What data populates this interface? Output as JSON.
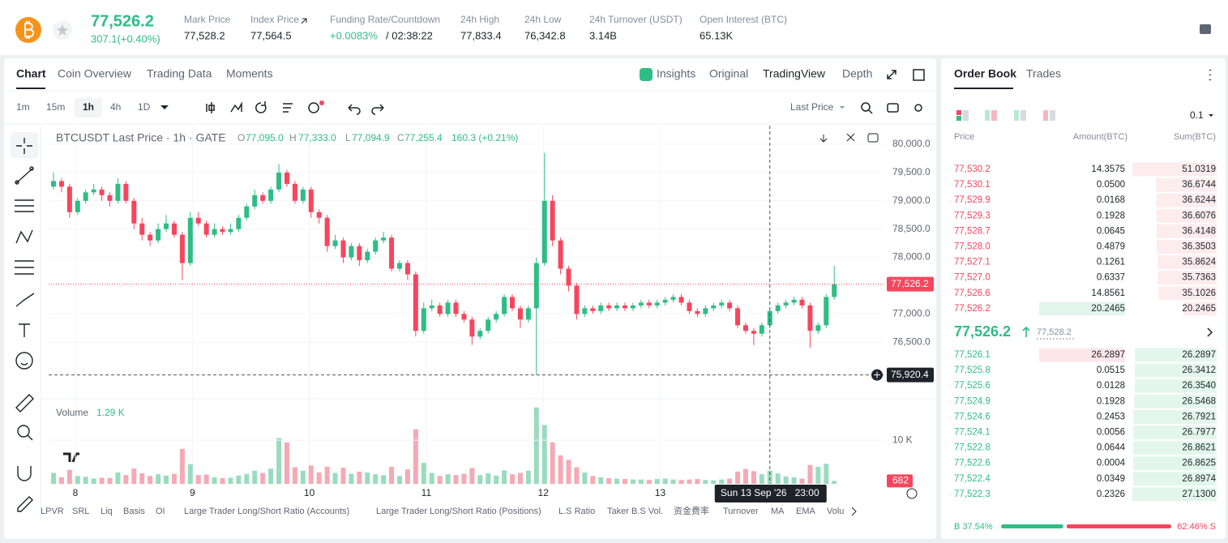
{
  "header": {
    "price": "77,526.2",
    "change": "307.1(+0.40%)",
    "stats": [
      {
        "label": "Mark Price",
        "value": "77,528.2"
      },
      {
        "label": "Index Price",
        "value": "77,564.5"
      },
      {
        "label": "Funding Rate/Countdown",
        "value": "+0.0083%",
        "extra": "/ 02:38:22"
      },
      {
        "label": "24h High",
        "value": "77,833.4"
      },
      {
        "label": "24h Low",
        "value": "76,342.8"
      },
      {
        "label": "24h Turnover (USDT)",
        "value": "3.14B"
      },
      {
        "label": "Open Interest (BTC)",
        "value": "65.13K"
      }
    ]
  },
  "chart_tabs": [
    "Chart",
    "Coin Overview",
    "Trading Data",
    "Moments"
  ],
  "view_tabs": [
    "Insights",
    "Original",
    "TradingView",
    "Depth"
  ],
  "intervals": [
    "1m",
    "15m",
    "1h",
    "4h",
    "1D"
  ],
  "price_type": "Last Price",
  "chart_data": {
    "type": "candlestick",
    "title": "BTCUSDT Last Price · 1h · GATE",
    "legend": [
      {
        "key": "O",
        "value": "77,095.0"
      },
      {
        "key": "H",
        "value": "77,333.0"
      },
      {
        "key": "L",
        "value": "77,094.9"
      },
      {
        "key": "C",
        "value": "77,255.4"
      }
    ],
    "legend_change": "160.3 (+0.21%)",
    "colors": {
      "up": "#2ebd85",
      "down": "#f6465d",
      "up_volume": "#9adbbf",
      "down_volume": "#f5a9b3"
    },
    "candles": [
      [
        79250,
        79500,
        79200,
        79350
      ],
      [
        79350,
        79400,
        79150,
        79250
      ],
      [
        79250,
        79300,
        78700,
        78800
      ],
      [
        78800,
        79050,
        78750,
        79000
      ],
      [
        79000,
        79200,
        78950,
        79150
      ],
      [
        79150,
        79300,
        79100,
        79200
      ],
      [
        79200,
        79250,
        79000,
        79100
      ],
      [
        79100,
        79150,
        78900,
        79000
      ],
      [
        79000,
        79400,
        78950,
        79300
      ],
      [
        79300,
        79350,
        78950,
        79000
      ],
      [
        79000,
        79050,
        78500,
        78600
      ],
      [
        78600,
        78700,
        78300,
        78400
      ],
      [
        78400,
        78450,
        78200,
        78300
      ],
      [
        78300,
        78600,
        78250,
        78500
      ],
      [
        78500,
        78750,
        78450,
        78600
      ],
      [
        78600,
        78650,
        78350,
        78400
      ],
      [
        78400,
        78450,
        77600,
        77900
      ],
      [
        77900,
        78800,
        77850,
        78700
      ],
      [
        78700,
        78800,
        78550,
        78600
      ],
      [
        78600,
        78650,
        78350,
        78400
      ],
      [
        78400,
        78600,
        78350,
        78500
      ],
      [
        78500,
        78550,
        78400,
        78450
      ],
      [
        78450,
        78600,
        78400,
        78500
      ],
      [
        78500,
        78750,
        78450,
        78700
      ],
      [
        78700,
        78950,
        78650,
        78900
      ],
      [
        78900,
        79200,
        78850,
        79100
      ],
      [
        79100,
        79150,
        78950,
        79000
      ],
      [
        79000,
        79250,
        78950,
        79200
      ],
      [
        79200,
        79650,
        79150,
        79500
      ],
      [
        79500,
        79550,
        79250,
        79300
      ],
      [
        79300,
        79350,
        78950,
        79000
      ],
      [
        79000,
        79250,
        78950,
        79200
      ],
      [
        79200,
        79250,
        78700,
        78800
      ],
      [
        78800,
        78850,
        78600,
        78700
      ],
      [
        78700,
        78750,
        78100,
        78200
      ],
      [
        78200,
        78400,
        78150,
        78300
      ],
      [
        78300,
        78350,
        77900,
        78000
      ],
      [
        78000,
        78250,
        77950,
        78200
      ],
      [
        78200,
        78250,
        77850,
        77950
      ],
      [
        77950,
        78150,
        77900,
        78100
      ],
      [
        78100,
        78350,
        78050,
        78300
      ],
      [
        78300,
        78450,
        78250,
        78350
      ],
      [
        78350,
        78400,
        77750,
        77800
      ],
      [
        77800,
        77950,
        77750,
        77900
      ],
      [
        77900,
        77950,
        77600,
        77700
      ],
      [
        77700,
        77750,
        76600,
        76700
      ],
      [
        76700,
        77200,
        76650,
        77100
      ],
      [
        77100,
        77250,
        77050,
        77150
      ],
      [
        77150,
        77200,
        76950,
        77000
      ],
      [
        77000,
        77250,
        76950,
        77200
      ],
      [
        77200,
        77250,
        76950,
        77000
      ],
      [
        77000,
        77050,
        76850,
        76900
      ],
      [
        76900,
        76950,
        76450,
        76600
      ],
      [
        76600,
        76750,
        76550,
        76700
      ],
      [
        76700,
        76950,
        76650,
        76900
      ],
      [
        76900,
        77050,
        76850,
        77000
      ],
      [
        77000,
        77350,
        76950,
        77300
      ],
      [
        77300,
        77350,
        77050,
        77100
      ],
      [
        77100,
        77150,
        76750,
        76900
      ],
      [
        76900,
        77150,
        76850,
        77100
      ],
      [
        77100,
        78000,
        75920.4,
        77900
      ],
      [
        77900,
        79850,
        77850,
        79000
      ],
      [
        79000,
        79100,
        78200,
        78300
      ],
      [
        78300,
        78350,
        77700,
        77800
      ],
      [
        77800,
        77850,
        77400,
        77500
      ],
      [
        77500,
        77550,
        76900,
        77000
      ],
      [
        77000,
        77150,
        76950,
        77100
      ],
      [
        77100,
        77150,
        77000,
        77050
      ],
      [
        77050,
        77200,
        77000,
        77150
      ],
      [
        77150,
        77200,
        77050,
        77100
      ],
      [
        77100,
        77200,
        77050,
        77150
      ],
      [
        77150,
        77200,
        77050,
        77100
      ],
      [
        77100,
        77200,
        77050,
        77150
      ],
      [
        77150,
        77250,
        77100,
        77200
      ],
      [
        77200,
        77250,
        77100,
        77150
      ],
      [
        77150,
        77250,
        77100,
        77200
      ],
      [
        77200,
        77300,
        77150,
        77250
      ],
      [
        77250,
        77350,
        77200,
        77300
      ],
      [
        77300,
        77350,
        77150,
        77200
      ],
      [
        77200,
        77250,
        77000,
        77050
      ],
      [
        77050,
        77100,
        76950,
        77000
      ],
      [
        77000,
        77150,
        76950,
        77100
      ],
      [
        77100,
        77200,
        77050,
        77150
      ],
      [
        77150,
        77250,
        77100,
        77200
      ],
      [
        77200,
        77250,
        77050,
        77100
      ],
      [
        77100,
        77150,
        76750,
        76800
      ],
      [
        76800,
        76850,
        76650,
        76700
      ],
      [
        76700,
        76750,
        76450,
        76650
      ],
      [
        76650,
        76850,
        76600,
        76800
      ],
      [
        76800,
        77100,
        76750,
        77050
      ],
      [
        77050,
        77200,
        77000,
        77150
      ],
      [
        77150,
        77250,
        77100,
        77200
      ],
      [
        77200,
        77300,
        77150,
        77250
      ],
      [
        77250,
        77300,
        77100,
        77150
      ],
      [
        77150,
        77200,
        76400,
        76700
      ],
      [
        76700,
        76850,
        76650,
        76800
      ],
      [
        76800,
        77350,
        76750,
        77300
      ],
      [
        77300,
        77850,
        77250,
        77526.2
      ]
    ],
    "ylim": [
      75500,
      80330
    ],
    "yticks": [
      {
        "value": 76500,
        "label": "76,500.0"
      },
      {
        "value": 77000,
        "label": "77,000.0"
      },
      {
        "value": 77500,
        "label": "77,500.0"
      },
      {
        "value": 78000,
        "label": "78,000.0"
      },
      {
        "value": 78500,
        "label": "78,500.0"
      },
      {
        "value": 79000,
        "label": "79,000.0"
      },
      {
        "value": 79500,
        "label": "79,500.0"
      },
      {
        "value": 80000,
        "label": "80,000.0"
      }
    ],
    "last_price_label": "77,526.2",
    "crosshair": {
      "value": 75920.4,
      "label": "75,920.4",
      "time": "Sun 13 Sep '26   23:00"
    },
    "x_labels": [
      "8",
      "9",
      "10",
      "11",
      "12",
      "13"
    ],
    "volume": {
      "title": "Volume",
      "current": "1.29 K",
      "ylim": [
        0,
        18000
      ],
      "yticks": [
        {
          "value": 10000,
          "label": "10 K"
        }
      ],
      "values": [
        2500,
        1500,
        3200,
        1800,
        1600,
        1200,
        1400,
        1300,
        2600,
        2000,
        3500,
        2400,
        1800,
        2200,
        1900,
        2300,
        8000,
        4500,
        2000,
        2100,
        1500,
        1300,
        1400,
        1900,
        2300,
        3000,
        2500,
        3500,
        10500,
        9500,
        3800,
        3000,
        4200,
        2600,
        3900,
        2500,
        3700,
        2300,
        2800,
        2600,
        2200,
        2000,
        3900,
        1800,
        3300,
        12500,
        4800,
        2500,
        1800,
        2200,
        2000,
        2300,
        3600,
        2000,
        2400,
        1900,
        3100,
        2200,
        2500,
        3000,
        17500,
        13500,
        9500,
        6500,
        5500,
        3800,
        2600,
        1800,
        1500,
        1300,
        1200,
        1100,
        1000,
        1000,
        900,
        1100,
        1200,
        1000,
        900,
        1000,
        1100,
        900,
        800,
        1000,
        1200,
        2800,
        3400,
        2900,
        2200,
        3000,
        2400,
        1700,
        1500,
        1200,
        4300,
        3900,
        4600,
        682
      ]
    }
  },
  "indicators": [
    "LPVR",
    "SRL",
    "Liq",
    "Basis",
    "OI",
    "Large Trader Long/Short Ratio (Accounts)",
    "Large Trader Long/Short Ratio (Positions)",
    "L.S Ratio",
    "Taker B.S Vol.",
    "资金费率",
    "Turnover",
    "MA",
    "EMA",
    "Volu"
  ],
  "order_book": {
    "tabs": [
      "Order Book",
      "Trades"
    ],
    "precision": "0.1",
    "columns": [
      "Price",
      "Amount(BTC)",
      "Sum(BTC)"
    ],
    "asks": [
      {
        "price": "77,530.2",
        "amount": "14.3575",
        "sum": 51.0319
      },
      {
        "price": "77,530.1",
        "amount": "0.0500",
        "sum": 36.6744
      },
      {
        "price": "77,529.9",
        "amount": "0.0168",
        "sum": 36.6244
      },
      {
        "price": "77,529.3",
        "amount": "0.1928",
        "sum": 36.6076
      },
      {
        "price": "77,528.7",
        "amount": "0.0645",
        "sum": 36.4148
      },
      {
        "price": "77,528.0",
        "amount": "0.4879",
        "sum": 36.3503
      },
      {
        "price": "77,527.1",
        "amount": "0.1261",
        "sum": 35.8624
      },
      {
        "price": "77,527.0",
        "amount": "0.6337",
        "sum": 35.7363
      },
      {
        "price": "77,526.6",
        "amount": "14.8561",
        "sum": 35.1026
      },
      {
        "price": "77,526.2",
        "amount": "20.2465",
        "sum": 20.2465
      }
    ],
    "mid_price": "77,526.2",
    "mark_price": "77,528.2",
    "bids": [
      {
        "price": "77,526.1",
        "amount": "26.2897",
        "sum": 26.2897
      },
      {
        "price": "77,525.8",
        "amount": "0.0515",
        "sum": 26.3412
      },
      {
        "price": "77,525.6",
        "amount": "0.0128",
        "sum": {
          "value": 26.354,
          "label": "26.3540"
        }
      },
      {
        "price": "77,524.9",
        "amount": "0.1928",
        "sum": 26.5468
      },
      {
        "price": "77,524.6",
        "amount": "0.2453",
        "sum": 26.7921
      },
      {
        "price": "77,524.1",
        "amount": "0.0056",
        "sum": 26.7977
      },
      {
        "price": "77,522.8",
        "amount": "0.0644",
        "sum": 26.8621
      },
      {
        "price": "77,522.6",
        "amount": "0.0004",
        "sum": 26.8625
      },
      {
        "price": "77,522.4",
        "amount": "0.0349",
        "sum": 26.8974
      },
      {
        "price": "77,522.3",
        "amount": "0.2326",
        "sum": {
          "value": 27.13,
          "label": "27.1300"
        }
      }
    ],
    "buy": {
      "value": 37.54,
      "label": "B 37.54%"
    },
    "sell": {
      "value": 62.46,
      "label": "62.46% S"
    }
  }
}
